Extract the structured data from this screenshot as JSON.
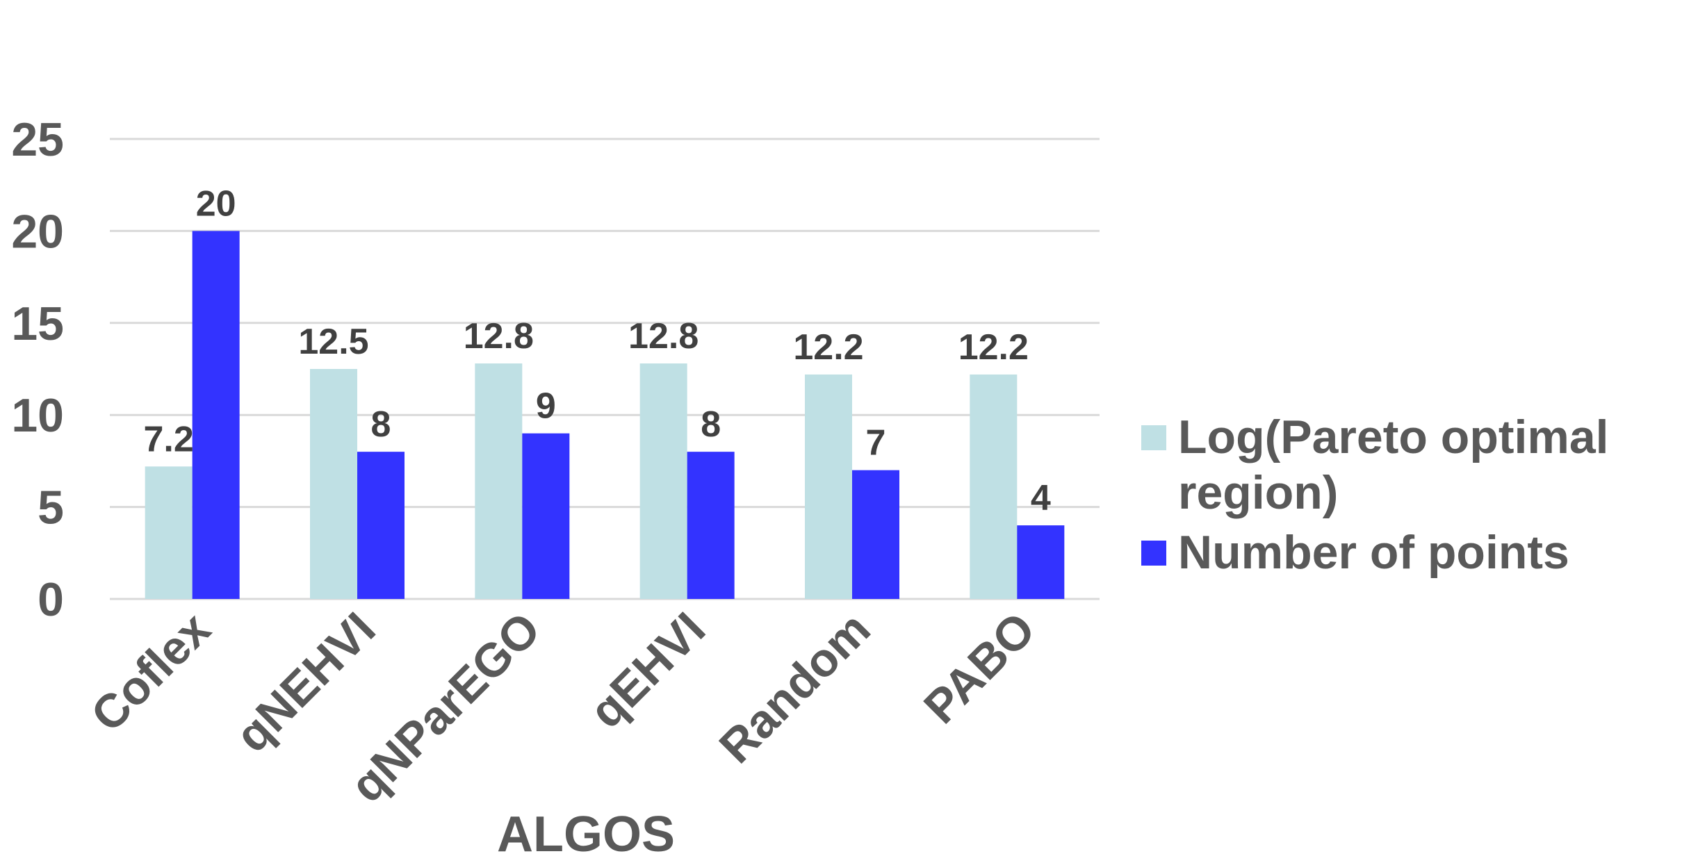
{
  "chart_data": {
    "type": "bar",
    "title": "",
    "xlabel": "ALGOS",
    "ylabel": "",
    "categories": [
      "Coflex",
      "qNEHVI",
      "qNParEGO",
      "qEHVI",
      "Random",
      "PABO"
    ],
    "series": [
      {
        "name": "Log(Pareto optimal region)",
        "values": [
          7.2,
          12.5,
          12.8,
          12.8,
          12.2,
          12.2
        ],
        "labels": [
          "7.2",
          "12.5",
          "12.8",
          "12.8",
          "12.2",
          "12.2"
        ],
        "color": "#bfe0e4"
      },
      {
        "name": "Number of points",
        "values": [
          20,
          8,
          9,
          8,
          7,
          4
        ],
        "labels": [
          "20",
          "8",
          "9",
          "8",
          "7",
          "4"
        ],
        "color": "#3333ff"
      }
    ],
    "ylim": [
      0,
      25
    ],
    "yticks": [
      0,
      5,
      10,
      15,
      20,
      25
    ],
    "grid": true,
    "legend_position": "right"
  }
}
